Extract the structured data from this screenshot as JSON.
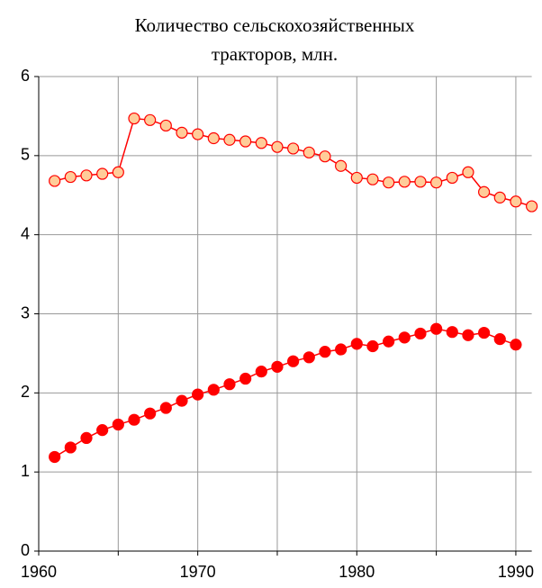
{
  "chart_data": {
    "type": "line",
    "title": [
      "Количество сельскохозяйственных",
      "тракторов, млн."
    ],
    "xlim": [
      1960,
      1991
    ],
    "xticks": [
      1960,
      1970,
      1980,
      1990
    ],
    "xminorticks": [
      1965,
      1975,
      1985
    ],
    "ylim": [
      0,
      6
    ],
    "yticks": [
      0,
      1,
      2,
      3,
      4,
      5,
      6
    ],
    "grid": true,
    "series": [
      {
        "color": "#ff0000",
        "marker_fill": "#ffcc99",
        "x": [
          1961,
          1962,
          1963,
          1964,
          1965,
          1966,
          1967,
          1968,
          1969,
          1970,
          1971,
          1972,
          1973,
          1974,
          1975,
          1976,
          1977,
          1978,
          1979,
          1980,
          1981,
          1982,
          1983,
          1984,
          1985,
          1986,
          1987,
          1988,
          1989,
          1990,
          1991
        ],
        "values": [
          4.68,
          4.73,
          4.75,
          4.77,
          4.79,
          5.47,
          5.45,
          5.38,
          5.29,
          5.27,
          5.22,
          5.2,
          5.18,
          5.16,
          5.11,
          5.09,
          5.04,
          4.99,
          4.87,
          4.72,
          4.7,
          4.66,
          4.67,
          4.67,
          4.66,
          4.72,
          4.79,
          4.54,
          4.47,
          4.42,
          4.36
        ]
      },
      {
        "color": "#ff0000",
        "marker_fill": "#ff0000",
        "x": [
          1961,
          1962,
          1963,
          1964,
          1965,
          1966,
          1967,
          1968,
          1969,
          1970,
          1971,
          1972,
          1973,
          1974,
          1975,
          1976,
          1977,
          1978,
          1979,
          1980,
          1981,
          1982,
          1983,
          1984,
          1985,
          1986,
          1987,
          1988,
          1989,
          1990
        ],
        "values": [
          1.19,
          1.31,
          1.43,
          1.53,
          1.6,
          1.66,
          1.74,
          1.81,
          1.9,
          1.98,
          2.04,
          2.11,
          2.18,
          2.27,
          2.33,
          2.4,
          2.45,
          2.52,
          2.55,
          2.62,
          2.59,
          2.65,
          2.7,
          2.75,
          2.81,
          2.77,
          2.73,
          2.76,
          2.68,
          2.61
        ]
      }
    ]
  }
}
